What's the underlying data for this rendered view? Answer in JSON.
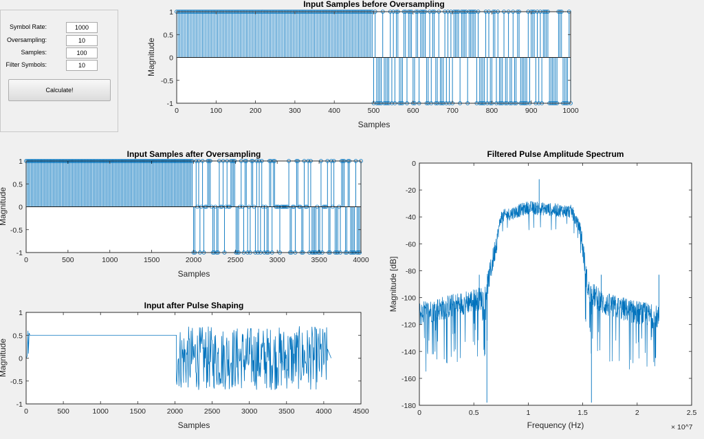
{
  "controls": {
    "fields": [
      {
        "label": "Symbol Rate:",
        "value": "1000"
      },
      {
        "label": "Oversampling:",
        "value": "10"
      },
      {
        "label": "Samples:",
        "value": "100"
      },
      {
        "label": "Filter Symbols:",
        "value": "10"
      }
    ],
    "button_label": "Calculate!"
  },
  "colors": {
    "series": "#0072bd",
    "axis": "#262626",
    "background": "#f0f0f0"
  },
  "chart_data": [
    {
      "type": "stem",
      "title": "Input Samples before Oversampling",
      "xlabel": "Samples",
      "ylabel": "Magnitude",
      "xlim": [
        0,
        1000
      ],
      "ylim": [
        -1,
        1
      ],
      "xticks": [
        "0",
        "100",
        "200",
        "300",
        "400",
        "500",
        "600",
        "700",
        "800",
        "900",
        "1000"
      ],
      "yticks": [
        "-1",
        "-0.5",
        "0",
        "0.5",
        "1"
      ],
      "segments": [
        {
          "x_range": [
            0,
            500
          ],
          "values": [
            1,
            0
          ]
        },
        {
          "x_range": [
            500,
            1000
          ],
          "values": [
            1,
            -1
          ]
        }
      ]
    },
    {
      "type": "stem",
      "title": "Input Samples after Oversampling",
      "xlabel": "Samples",
      "ylabel": "Magnitude",
      "xlim": [
        0,
        4000
      ],
      "ylim": [
        -1,
        1
      ],
      "xticks": [
        "0",
        "500",
        "1000",
        "1500",
        "2000",
        "2500",
        "3000",
        "3500",
        "4000"
      ],
      "yticks": [
        "-1",
        "-0.5",
        "0",
        "0.5",
        "1"
      ],
      "segments": [
        {
          "x_range": [
            0,
            2000
          ],
          "values": [
            1,
            0
          ]
        },
        {
          "x_range": [
            2000,
            4000
          ],
          "values": [
            1,
            0,
            -1
          ]
        }
      ]
    },
    {
      "type": "line",
      "title": "Input after Pulse Shaping",
      "xlabel": "Samples",
      "ylabel": "Magnitude",
      "xlim": [
        0,
        4500
      ],
      "ylim": [
        -1,
        1
      ],
      "xticks": [
        "0",
        "500",
        "1000",
        "1500",
        "2000",
        "2500",
        "3000",
        "3500",
        "4000",
        "4500"
      ],
      "yticks": [
        "-1",
        "-0.5",
        "0",
        "0.5",
        "1"
      ],
      "segments": [
        {
          "x_range": [
            0,
            50
          ],
          "shape": "transient",
          "range": [
            0.0,
            0.6
          ]
        },
        {
          "x_range": [
            50,
            2020
          ],
          "shape": "constant",
          "level": 0.5
        },
        {
          "x_range": [
            2020,
            4050
          ],
          "shape": "random",
          "range": [
            -0.7,
            0.7
          ]
        },
        {
          "x_range": [
            4050,
            4100
          ],
          "shape": "decay",
          "level": 0.0
        }
      ]
    },
    {
      "type": "line",
      "title": "Filtered Pulse Amplitude Spectrum",
      "xlabel": "Frequency (Hz)",
      "ylabel": "Magnitude [dB]",
      "x_exponent": "× 10^7",
      "xlim": [
        0,
        2.5
      ],
      "ylim": [
        -180,
        0
      ],
      "xticks": [
        "0",
        "0.5",
        "1",
        "1.5",
        "2",
        "2.5"
      ],
      "yticks": [
        "-180",
        "-160",
        "-140",
        "-120",
        "-100",
        "-80",
        "-60",
        "-40",
        "-20",
        "0"
      ],
      "envelope": [
        {
          "x": 0.0,
          "y": -112
        },
        {
          "x": 0.6,
          "y": -100
        },
        {
          "x": 0.68,
          "y": -70
        },
        {
          "x": 0.75,
          "y": -40
        },
        {
          "x": 1.0,
          "y": -33
        },
        {
          "x": 1.4,
          "y": -36
        },
        {
          "x": 1.48,
          "y": -50
        },
        {
          "x": 1.55,
          "y": -95
        },
        {
          "x": 1.7,
          "y": -105
        },
        {
          "x": 2.2,
          "y": -115
        }
      ],
      "peaks": [
        {
          "x": 1.1,
          "y": -12
        },
        {
          "x": 0.55,
          "y": -83
        },
        {
          "x": 1.67,
          "y": -83
        },
        {
          "x": 2.2,
          "y": -83
        },
        {
          "x": 0.62,
          "y": -178
        },
        {
          "x": 1.58,
          "y": -178
        }
      ]
    }
  ]
}
